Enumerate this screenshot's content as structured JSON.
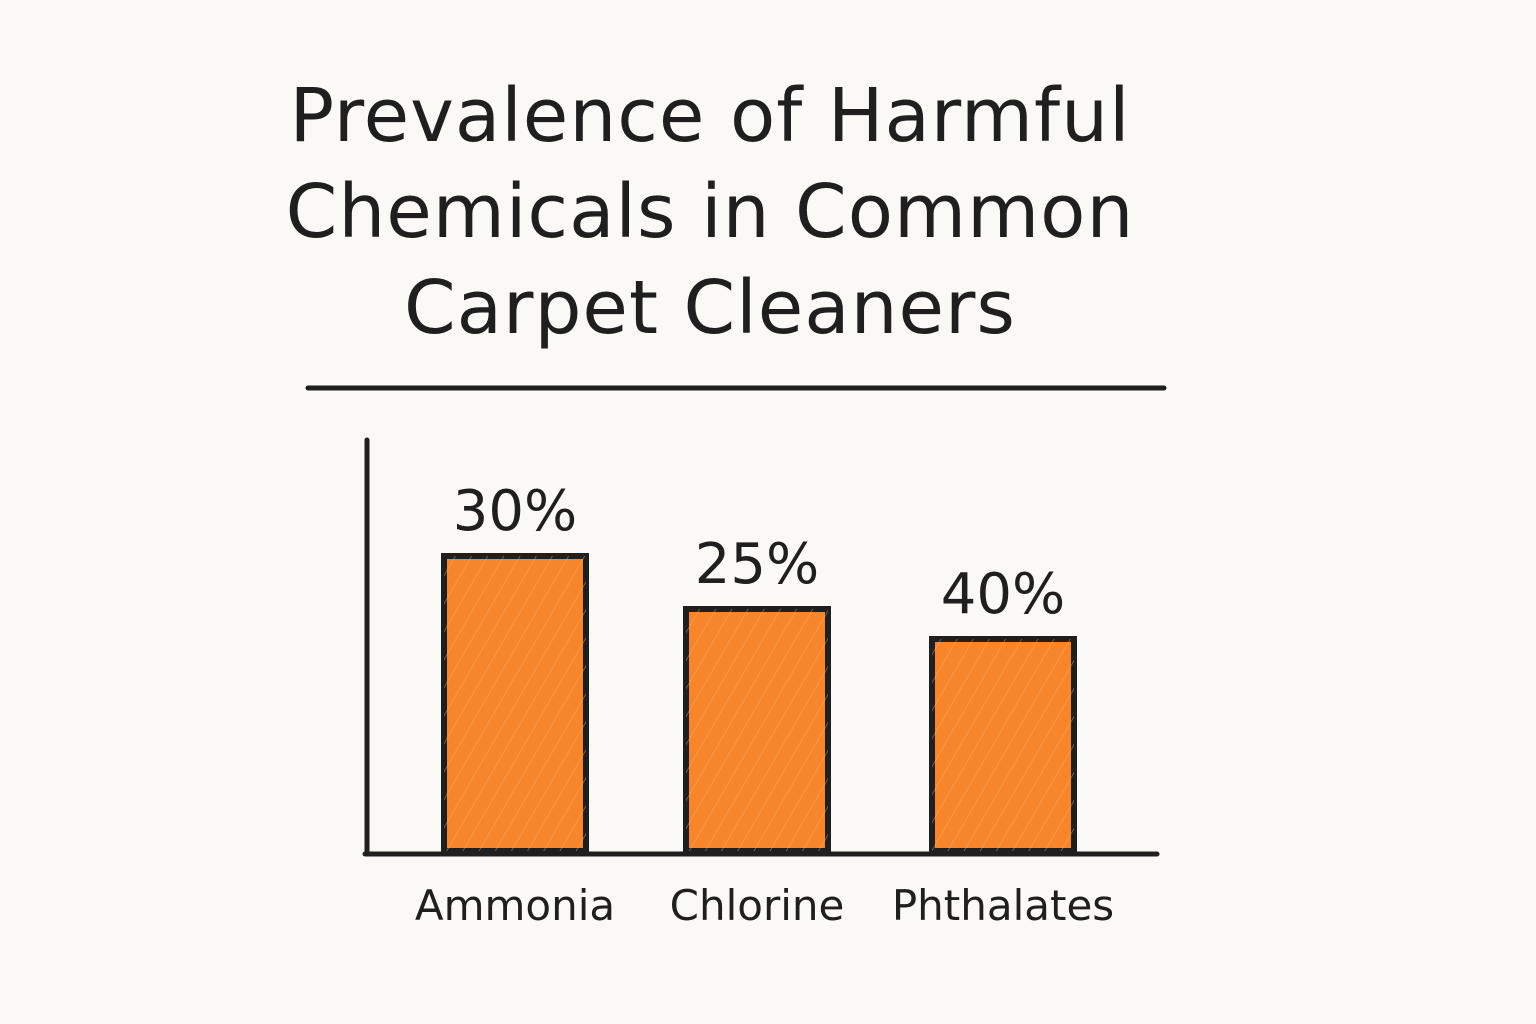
{
  "chart_data": {
    "type": "bar",
    "title": "Prevalence of Harmful Chemicals in Common Carpet Cleaners",
    "categories": [
      "Ammonia",
      "Chlorine",
      "Phthalates"
    ],
    "values": [
      30,
      25,
      40
    ],
    "value_labels": [
      "30%",
      "25%",
      "40%"
    ],
    "bar_color": "#f7852b",
    "outline_color": "#1f1f1f",
    "background_color": "#fbf9f5",
    "grid": false,
    "legend": "none"
  }
}
